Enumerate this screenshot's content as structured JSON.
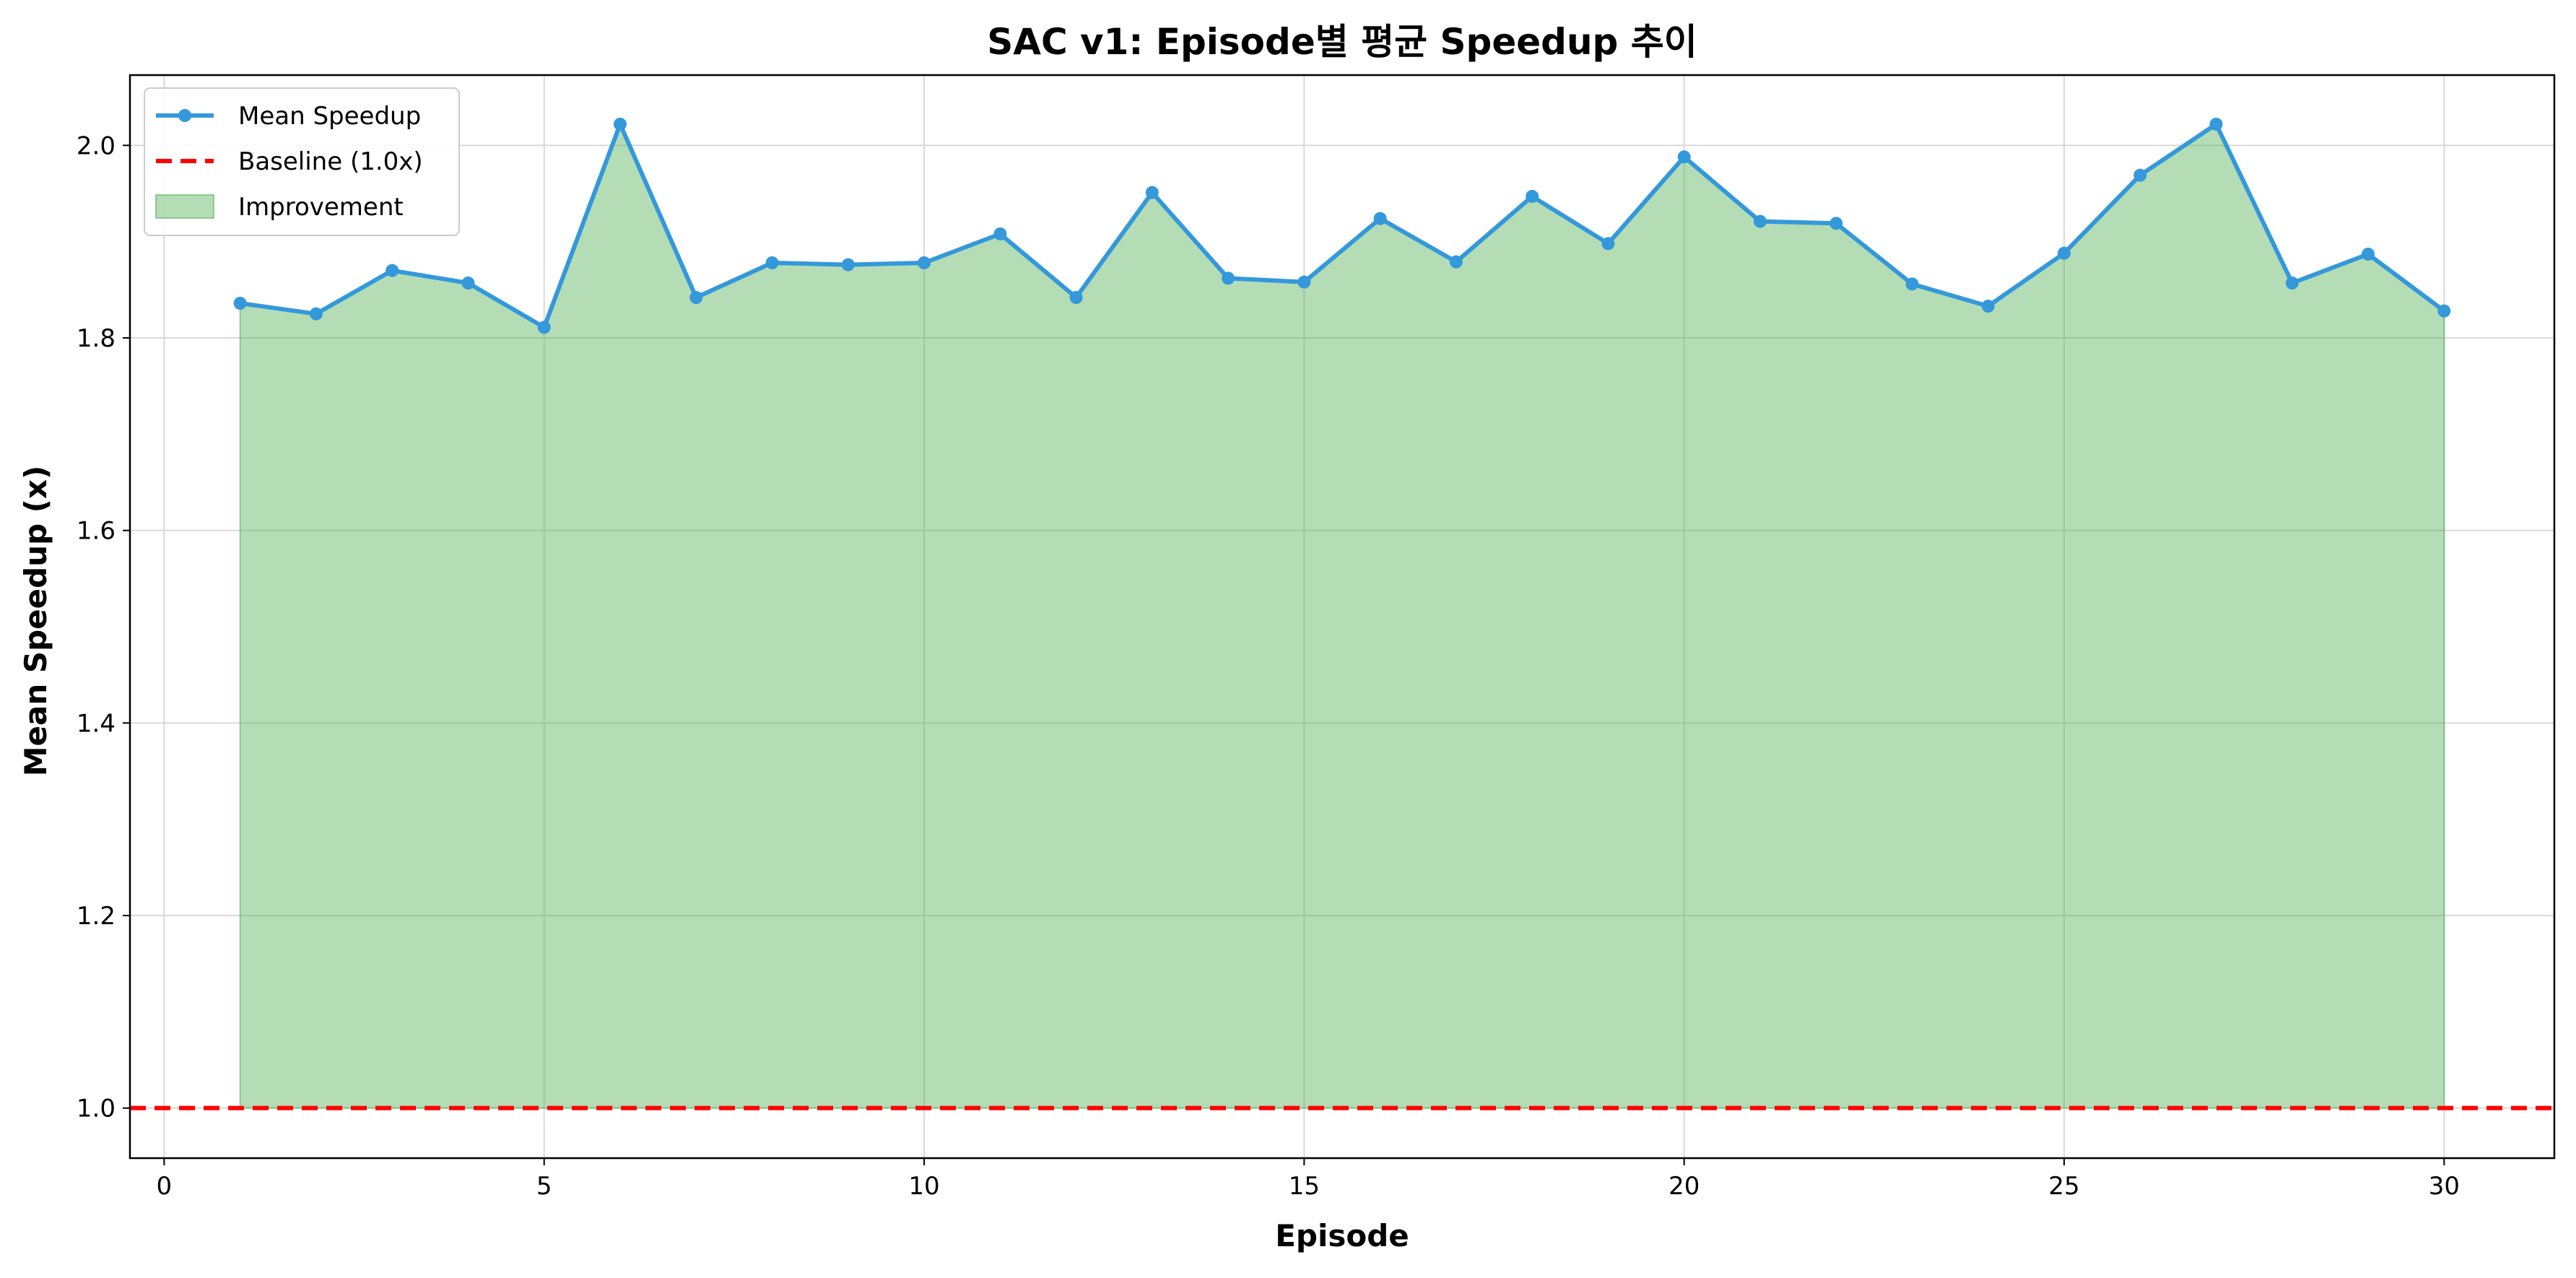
{
  "chart_data": {
    "type": "line",
    "title": "SAC v1: Episode별 평균 Speedup 추이",
    "xlabel": "Episode",
    "ylabel": "Mean Speedup (x)",
    "xlim": [
      -0.45,
      31.45
    ],
    "ylim": [
      0.948,
      2.073
    ],
    "xticks": [
      0,
      5,
      10,
      15,
      20,
      25,
      30
    ],
    "yticks": [
      1.0,
      1.2,
      1.4,
      1.6,
      1.8,
      2.0
    ],
    "xtick_labels": [
      "0",
      "5",
      "10",
      "15",
      "20",
      "25",
      "30"
    ],
    "ytick_labels": [
      "1.0",
      "1.2",
      "1.4",
      "1.6",
      "1.8",
      "2.0"
    ],
    "grid": true,
    "legend_position": "top-left",
    "x": [
      1,
      2,
      3,
      4,
      5,
      6,
      7,
      8,
      9,
      10,
      11,
      12,
      13,
      14,
      15,
      16,
      17,
      18,
      19,
      20,
      21,
      22,
      23,
      24,
      25,
      26,
      27,
      28,
      29,
      30
    ],
    "series": [
      {
        "name": "Mean Speedup",
        "kind": "line",
        "color": "#3498db",
        "values": [
          1.836,
          1.825,
          1.87,
          1.857,
          1.811,
          2.022,
          1.842,
          1.878,
          1.876,
          1.878,
          1.908,
          1.842,
          1.951,
          1.862,
          1.858,
          1.924,
          1.879,
          1.947,
          1.898,
          1.988,
          1.921,
          1.919,
          1.856,
          1.833,
          1.888,
          1.969,
          2.022,
          1.857,
          1.887,
          1.828
        ]
      },
      {
        "name": "Baseline (1.0x)",
        "kind": "hline",
        "color": "#ff0000",
        "value": 1.0
      },
      {
        "name": "Improvement",
        "kind": "fill_between",
        "color": "#4caf50",
        "lower": 1.0
      }
    ]
  }
}
